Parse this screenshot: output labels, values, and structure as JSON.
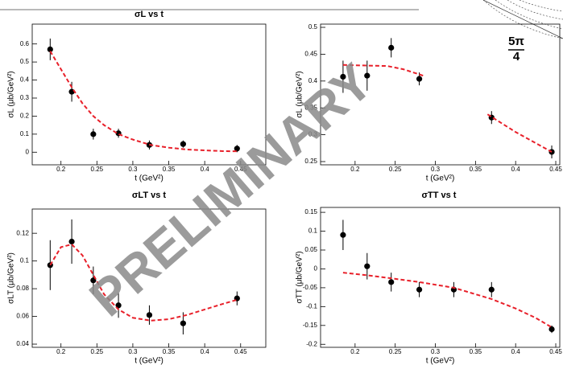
{
  "chart_data": [
    {
      "type": "scatter",
      "title": "σL vs t",
      "x_label": "t (GeV²)",
      "y_label": "σL (μb/GeV²)",
      "xlim": [
        0.16,
        0.485
      ],
      "ylim": [
        -0.07,
        0.71
      ],
      "xticks": [
        0.2,
        0.25,
        0.3,
        0.35,
        0.4,
        0.45
      ],
      "yticks": [
        0,
        0.1,
        0.2,
        0.3,
        0.4,
        0.5,
        0.6
      ],
      "series": [
        {
          "kind": "points",
          "color": "#000000",
          "x": [
            0.185,
            0.215,
            0.245,
            0.28,
            0.323,
            0.37,
            0.445
          ],
          "values": [
            0.57,
            0.335,
            0.1,
            0.105,
            0.04,
            0.045,
            0.02
          ],
          "errors": [
            0.06,
            0.055,
            0.03,
            0.025,
            0.025,
            0.02,
            0.02
          ]
        },
        {
          "kind": "fit",
          "color": "#e8202a",
          "x": [
            0.185,
            0.2,
            0.215,
            0.23,
            0.245,
            0.26,
            0.28,
            0.3,
            0.325,
            0.35,
            0.375,
            0.4,
            0.425,
            0.445
          ],
          "values": [
            0.56,
            0.46,
            0.36,
            0.27,
            0.2,
            0.15,
            0.1,
            0.07,
            0.04,
            0.025,
            0.015,
            0.01,
            0.006,
            0.005
          ]
        }
      ]
    },
    {
      "type": "scatter",
      "y_label": "σL (μb/GeV²)",
      "x_label": "t (GeV²)",
      "xlim": [
        0.157,
        0.455
      ],
      "ylim": [
        0.244,
        0.506
      ],
      "xticks": [
        0.2,
        0.25,
        0.3,
        0.35,
        0.4,
        0.45
      ],
      "yticks": [
        0.25,
        0.3,
        0.35,
        0.4,
        0.45,
        0.5
      ],
      "series": [
        {
          "kind": "points",
          "color": "#000000",
          "x": [
            0.185,
            0.215,
            0.245,
            0.28,
            0.37,
            0.445
          ],
          "values": [
            0.408,
            0.41,
            0.462,
            0.404,
            0.332,
            0.268
          ],
          "errors": [
            0.03,
            0.028,
            0.018,
            0.012,
            0.012,
            0.012
          ]
        },
        {
          "kind": "fit",
          "color": "#e8202a",
          "x": [
            0.185,
            0.21,
            0.24,
            0.26,
            0.285,
            0.32,
            0.365,
            0.4,
            0.445
          ],
          "values": [
            0.43,
            0.429,
            0.428,
            0.422,
            0.41,
            null,
            0.338,
            0.305,
            0.268
          ]
        }
      ]
    },
    {
      "type": "scatter",
      "title": "σLT vs t",
      "x_label": "t (GeV²)",
      "y_label": "σLT (μb/GeV²)",
      "xlim": [
        0.16,
        0.485
      ],
      "ylim": [
        0.0377,
        0.1375
      ],
      "xticks": [
        0.2,
        0.25,
        0.3,
        0.35,
        0.4,
        0.45
      ],
      "yticks": [
        0.04,
        0.06,
        0.08,
        0.1,
        0.12
      ],
      "series": [
        {
          "kind": "points",
          "color": "#000000",
          "x": [
            0.185,
            0.215,
            0.245,
            0.28,
            0.323,
            0.37,
            0.445
          ],
          "values": [
            0.097,
            0.114,
            0.086,
            0.068,
            0.061,
            0.055,
            0.073
          ],
          "errors": [
            0.018,
            0.016,
            0.01,
            0.009,
            0.007,
            0.008,
            0.005
          ]
        },
        {
          "kind": "fit",
          "color": "#e8202a",
          "x": [
            0.185,
            0.2,
            0.215,
            0.23,
            0.245,
            0.26,
            0.28,
            0.3,
            0.325,
            0.35,
            0.375,
            0.4,
            0.425,
            0.445
          ],
          "values": [
            0.097,
            0.11,
            0.112,
            0.104,
            0.09,
            0.076,
            0.065,
            0.059,
            0.057,
            0.058,
            0.061,
            0.065,
            0.069,
            0.072
          ]
        }
      ]
    },
    {
      "type": "scatter",
      "title": "σTT vs t",
      "x_label": "t (GeV²)",
      "y_label": "σTT (μb/GeV²)",
      "xlim": [
        0.157,
        0.455
      ],
      "ylim": [
        -0.208,
        0.163
      ],
      "xticks": [
        0.2,
        0.25,
        0.3,
        0.35,
        0.4,
        0.45
      ],
      "yticks": [
        -0.2,
        -0.15,
        -0.1,
        -0.05,
        0,
        0.05,
        0.1,
        0.15
      ],
      "series": [
        {
          "kind": "points",
          "color": "#000000",
          "x": [
            0.185,
            0.215,
            0.245,
            0.28,
            0.323,
            0.37,
            0.445
          ],
          "values": [
            0.09,
            0.007,
            -0.035,
            -0.055,
            -0.055,
            -0.055,
            -0.16
          ],
          "errors": [
            0.04,
            0.035,
            0.025,
            0.02,
            0.02,
            0.02,
            0.01
          ]
        },
        {
          "kind": "fit",
          "color": "#e8202a",
          "x": [
            0.185,
            0.215,
            0.245,
            0.28,
            0.323,
            0.37,
            0.4,
            0.425,
            0.445
          ],
          "values": [
            -0.01,
            -0.017,
            -0.025,
            -0.035,
            -0.05,
            -0.08,
            -0.105,
            -0.13,
            -0.155
          ]
        }
      ]
    }
  ],
  "watermark": "PRELIMINARY",
  "corner_label": {
    "numerator": "5π",
    "denominator": "4"
  }
}
